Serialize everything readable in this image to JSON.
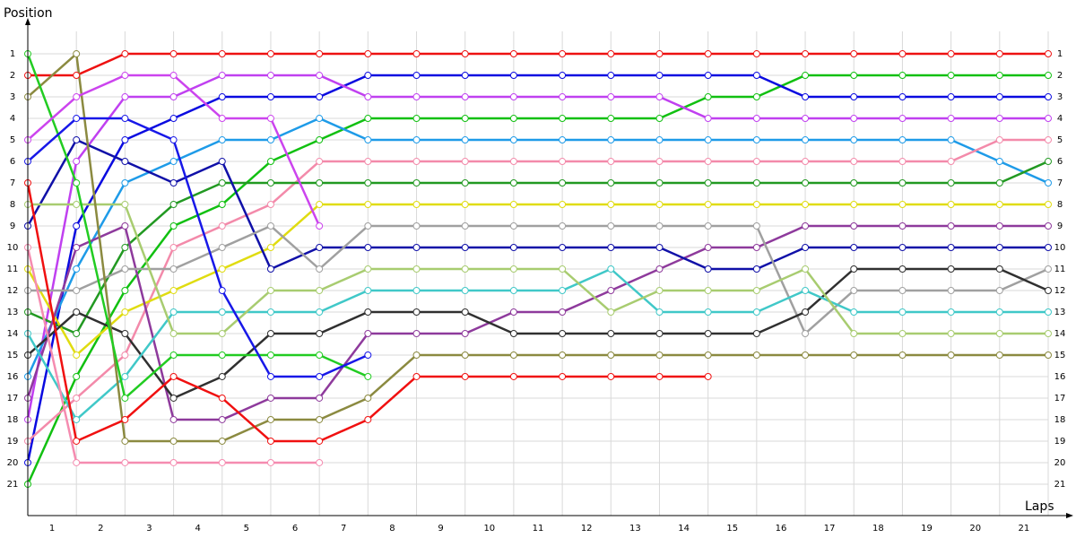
{
  "chart_data": {
    "type": "line",
    "y_label": "Position",
    "x_label": "Laps",
    "x": [
      0,
      1,
      2,
      3,
      4,
      5,
      6,
      7,
      8,
      9,
      10,
      11,
      12,
      13,
      14,
      15,
      16,
      17,
      18,
      19,
      20,
      21
    ],
    "xlim": [
      0,
      21
    ],
    "xticks": [
      1,
      2,
      3,
      4,
      5,
      6,
      7,
      8,
      9,
      10,
      11,
      12,
      13,
      14,
      15,
      16,
      17,
      18,
      19,
      20,
      21
    ],
    "ylim": [
      22.46,
      -0.46
    ],
    "yticks": [
      1,
      2,
      3,
      4,
      5,
      6,
      7,
      8,
      9,
      10,
      11,
      12,
      13,
      14,
      15,
      16,
      17,
      18,
      19,
      20,
      21
    ],
    "grid": true,
    "series": [
      {
        "color": "#ee1111",
        "values": [
          2,
          2,
          1,
          1,
          1,
          1,
          1,
          1,
          1,
          1,
          1,
          1,
          1,
          1,
          1,
          1,
          1,
          1,
          1,
          1,
          1,
          1
        ]
      },
      {
        "color": "#11c011",
        "values": [
          21,
          16,
          12,
          9,
          8,
          6,
          5,
          4,
          4,
          4,
          4,
          4,
          4,
          4,
          3,
          3,
          2,
          2,
          2,
          2,
          2,
          2
        ]
      },
      {
        "color": "#0a0ae0",
        "values": [
          20,
          9,
          5,
          4,
          3,
          3,
          3,
          2,
          2,
          2,
          2,
          2,
          2,
          2,
          2,
          2,
          3,
          3,
          3,
          3,
          3,
          3
        ]
      },
      {
        "color": "#c040f0",
        "values": [
          18,
          6,
          3,
          3,
          2,
          2,
          2,
          3,
          3,
          3,
          3,
          3,
          3,
          3,
          4,
          4,
          4,
          4,
          4,
          4,
          4,
          4
        ]
      },
      {
        "color": "#1e9be8",
        "values": [
          16,
          11,
          7,
          6,
          5,
          5,
          4,
          5,
          5,
          5,
          5,
          5,
          5,
          5,
          5,
          5,
          5,
          5,
          5,
          5,
          6,
          7
        ]
      },
      {
        "color": "#f38aaa",
        "values": [
          19,
          17,
          15,
          10,
          9,
          8,
          6,
          6,
          6,
          6,
          6,
          6,
          6,
          6,
          6,
          6,
          6,
          6,
          6,
          6,
          5,
          5
        ]
      },
      {
        "color": "#229922",
        "values": [
          13,
          14,
          10,
          8,
          7,
          7,
          7,
          7,
          7,
          7,
          7,
          7,
          7,
          7,
          7,
          7,
          7,
          7,
          7,
          7,
          7,
          6
        ]
      },
      {
        "color": "#e0dc10",
        "values": [
          11,
          15,
          13,
          12,
          11,
          10,
          8,
          8,
          8,
          8,
          8,
          8,
          8,
          8,
          8,
          8,
          8,
          8,
          8,
          8,
          8,
          8
        ]
      },
      {
        "color": "#8e3a9c",
        "values": [
          17,
          10,
          9,
          18,
          18,
          17,
          17,
          14,
          14,
          14,
          13,
          13,
          12,
          11,
          10,
          10,
          9,
          9,
          9,
          9,
          9,
          9
        ]
      },
      {
        "color": "#1010a8",
        "values": [
          9,
          5,
          6,
          7,
          6,
          11,
          10,
          10,
          10,
          10,
          10,
          10,
          10,
          10,
          11,
          11,
          10,
          10,
          10,
          10,
          10,
          10
        ]
      },
      {
        "color": "#a0a0a0",
        "values": [
          12,
          12,
          11,
          11,
          10,
          9,
          11,
          9,
          9,
          9,
          9,
          9,
          9,
          9,
          9,
          9,
          14,
          12,
          12,
          12,
          12,
          11
        ]
      },
      {
        "color": "#303030",
        "values": [
          15,
          13,
          14,
          17,
          16,
          14,
          14,
          13,
          13,
          13,
          14,
          14,
          14,
          14,
          14,
          14,
          13,
          11,
          11,
          11,
          11,
          12
        ]
      },
      {
        "color": "#40c8c8",
        "values": [
          14,
          18,
          16,
          13,
          13,
          13,
          13,
          12,
          12,
          12,
          12,
          12,
          11,
          13,
          13,
          13,
          12,
          13,
          13,
          13,
          13,
          13
        ]
      },
      {
        "color": "#a8cc70",
        "values": [
          8,
          8,
          8,
          14,
          14,
          12,
          12,
          11,
          11,
          11,
          11,
          11,
          13,
          12,
          12,
          12,
          11,
          14,
          14,
          14,
          14,
          14
        ]
      },
      {
        "color": "#8b8a40",
        "values": [
          3,
          1,
          19,
          19,
          19,
          18,
          18,
          17,
          15,
          15,
          15,
          15,
          15,
          15,
          15,
          15,
          15,
          15,
          15,
          15,
          15,
          15
        ]
      },
      {
        "color": "#f01010",
        "values": [
          7,
          19,
          18,
          16,
          17,
          19,
          19,
          18,
          16,
          16,
          16,
          16,
          16,
          16,
          16,
          null,
          null,
          null,
          null,
          null,
          null,
          null
        ]
      },
      {
        "color": "#22cc22",
        "values": [
          1,
          7,
          17,
          15,
          15,
          15,
          15,
          16,
          null,
          null,
          null,
          null,
          null,
          null,
          null,
          null,
          null,
          null,
          null,
          null,
          null,
          null
        ]
      },
      {
        "color": "#1818e8",
        "values": [
          6,
          4,
          4,
          5,
          12,
          16,
          16,
          15,
          null,
          null,
          null,
          null,
          null,
          null,
          null,
          null,
          null,
          null,
          null,
          null,
          null,
          null
        ]
      },
      {
        "color": "#cc44ee",
        "values": [
          5,
          3,
          2,
          2,
          4,
          4,
          9,
          null,
          null,
          null,
          null,
          null,
          null,
          null,
          null,
          null,
          null,
          null,
          null,
          null,
          null,
          null
        ]
      },
      {
        "color": "#f58cb0",
        "values": [
          10,
          20,
          20,
          20,
          20,
          20,
          20,
          null,
          null,
          null,
          null,
          null,
          null,
          null,
          null,
          null,
          null,
          null,
          null,
          null,
          null,
          null
        ]
      }
    ]
  }
}
